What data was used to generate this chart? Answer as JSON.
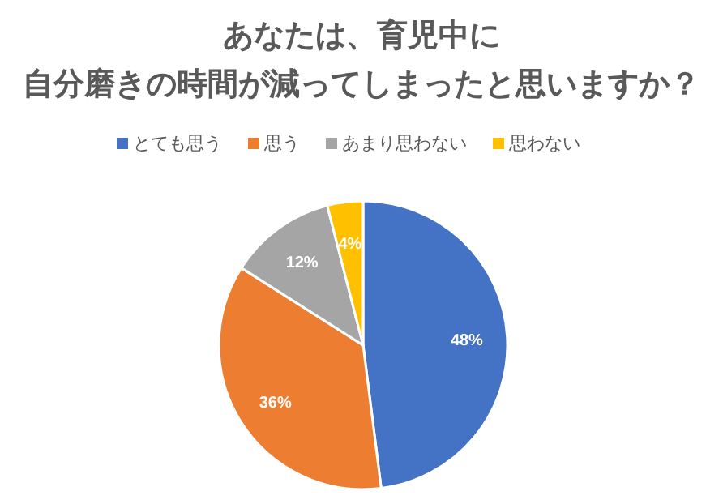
{
  "chart_data": {
    "type": "pie",
    "title": "あなたは、育児中に",
    "subtitle": "自分磨きの時間が減ってしまったと思いますか？",
    "categories": [
      "とても思う",
      "思う",
      "あまり思わない",
      "思わない"
    ],
    "values": [
      48,
      36,
      12,
      4
    ],
    "colors": [
      "#4472c4",
      "#ed7d31",
      "#a5a5a5",
      "#ffc000"
    ],
    "value_labels": [
      "48%",
      "36%",
      "12%",
      "4%"
    ],
    "legend": "top"
  }
}
